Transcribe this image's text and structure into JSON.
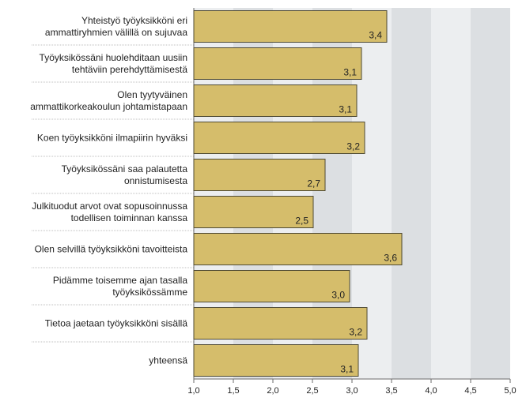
{
  "chart_data": {
    "type": "bar",
    "orientation": "horizontal",
    "categories": [
      [
        "Yhteistyö työyksikköni eri",
        "ammattiryhmien välillä on sujuvaa"
      ],
      [
        "Työyksikössäni huolehditaan uusiin",
        "tehtäviin perehdyttämisestä"
      ],
      [
        "Olen tyytyväinen",
        "ammattikorkeakoulun johtamistapaan"
      ],
      [
        "Koen työyksikköni ilmapiirin hyväksi"
      ],
      [
        "Työyksikössäni saa palautetta",
        "onnistumisesta"
      ],
      [
        "Julkituodut arvot ovat sopusoinnussa",
        "todellisen toiminnan kanssa"
      ],
      [
        "Olen selvillä työyksikköni tavoitteista"
      ],
      [
        "Pidämme toisemme ajan tasalla",
        "työyksikössämme"
      ],
      [
        "Tietoa jaetaan työyksikköni sisällä"
      ],
      [
        "yhteensä"
      ]
    ],
    "values": [
      3.44,
      3.12,
      3.06,
      3.16,
      2.66,
      2.51,
      3.63,
      2.97,
      3.19,
      3.08
    ],
    "value_labels": [
      "3,4",
      "3,1",
      "3,1",
      "3,2",
      "2,7",
      "2,5",
      "3,6",
      "3,0",
      "3,2",
      "3,1"
    ],
    "xlim": [
      1.0,
      5.0
    ],
    "xticks": [
      1.0,
      1.5,
      2.0,
      2.5,
      3.0,
      3.5,
      4.0,
      4.5,
      5.0
    ],
    "xtick_labels": [
      "1,0",
      "1,5",
      "2,0",
      "2,5",
      "3,0",
      "3,5",
      "4,0",
      "4,5",
      "5,0"
    ],
    "title": "",
    "xlabel": "",
    "ylabel": "",
    "grid": "alternating vertical bands",
    "colors": {
      "bar_fill": "#d5bd6b",
      "bar_stroke": "#4f4a33",
      "band_light": "#eceef0",
      "band_dark": "#dcdfe2",
      "axis": "#6b6b6b",
      "text": "#222222",
      "separator": "#bfbfbf"
    }
  }
}
